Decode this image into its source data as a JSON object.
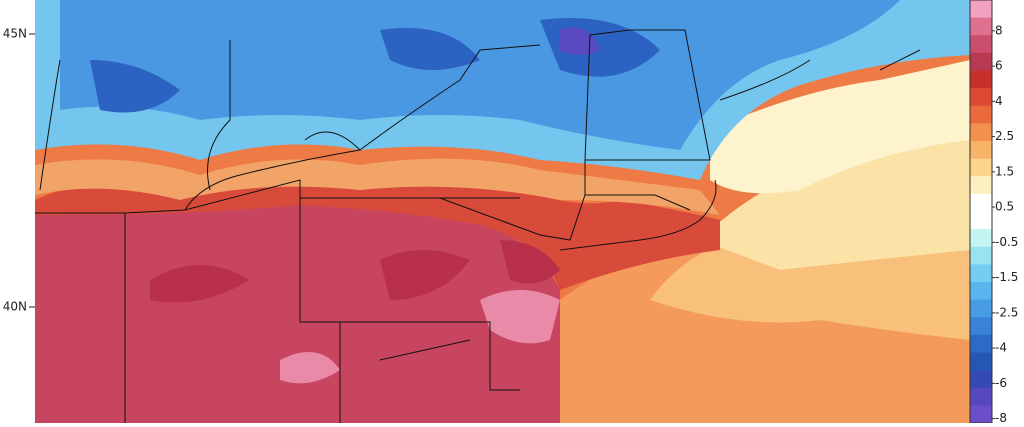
{
  "map": {
    "latitude_labels": [
      "45N",
      "40N"
    ],
    "colorbar": {
      "segment_colors": [
        "#f4a0c0",
        "#e07090",
        "#cc4e6e",
        "#b83a52",
        "#c8302c",
        "#dc4a34",
        "#ea6a3e",
        "#f2904e",
        "#f7b468",
        "#fbd58c",
        "#fdf0c0",
        "#ffffff",
        "#ffffff",
        "#c4f4f4",
        "#98e4ee",
        "#74cef2",
        "#5ab4ee",
        "#489ce4",
        "#3a82d8",
        "#2c6ac8",
        "#2456b4",
        "#3448b6",
        "#5448bc",
        "#6c4ec8"
      ],
      "labels": [
        "8",
        "6",
        "4",
        "2.5",
        "1.5",
        "0.5",
        "-0.5",
        "-1.5",
        "-2.5",
        "-4",
        "-6",
        "-8"
      ]
    }
  }
}
